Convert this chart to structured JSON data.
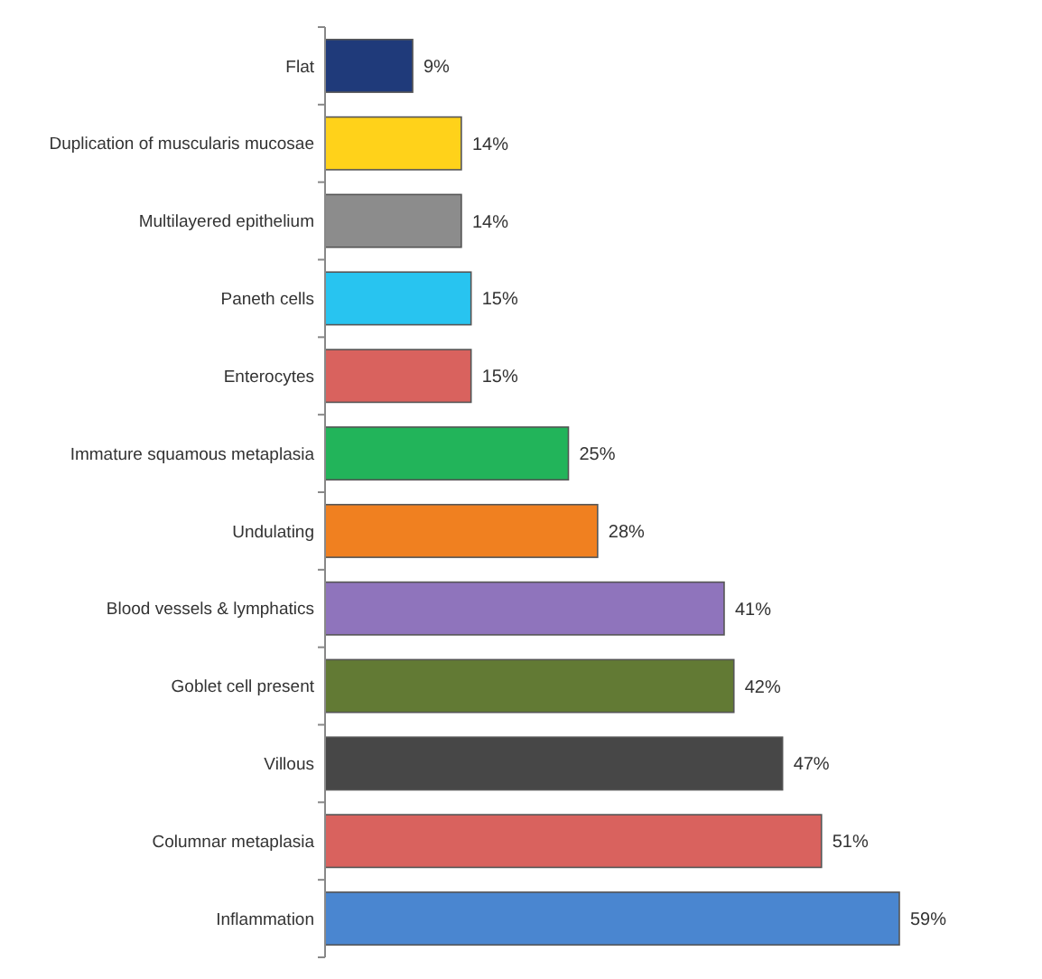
{
  "chart_data": {
    "type": "bar",
    "orientation": "horizontal",
    "categories": [
      "Flat",
      "Duplication of muscularis mucosae",
      "Multilayered epithelium",
      "Paneth cells",
      "Enterocytes",
      "Immature squamous metaplasia",
      "Undulating",
      "Blood vessels & lymphatics",
      "Goblet cell present",
      "Villous",
      "Columnar metaplasia",
      "Inflammation"
    ],
    "values": [
      9,
      14,
      14,
      15,
      15,
      25,
      28,
      41,
      42,
      47,
      51,
      59
    ],
    "colors": [
      "#1f3a7a",
      "#ffd21a",
      "#8c8c8c",
      "#28c4f0",
      "#d9625e",
      "#22b45a",
      "#f08020",
      "#8f74bc",
      "#627a34",
      "#474747",
      "#d9625e",
      "#4a86d0"
    ],
    "value_labels": [
      "9%",
      "14%",
      "14%",
      "15%",
      "15%",
      "25%",
      "28%",
      "41%",
      "42%",
      "47%",
      "51%",
      "59%"
    ]
  }
}
